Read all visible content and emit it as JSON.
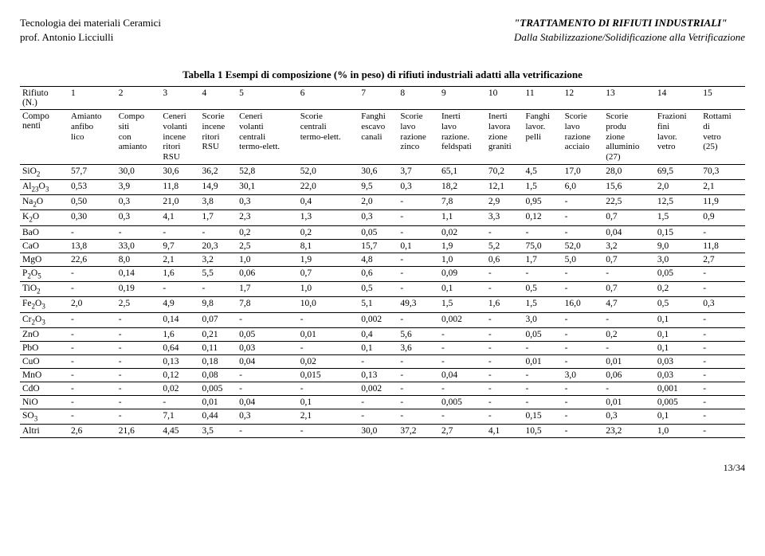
{
  "header": {
    "left_line1": "Tecnologia dei materiali Ceramici",
    "left_line2": "prof. Antonio Licciulli",
    "right_line1": "\"TRATTAMENTO DI RIFIUTI INDUSTRIALI\"",
    "right_line2": "Dalla Stabilizzazione/Solidificazione alla Vetrificazione"
  },
  "caption": "Tabella 1 Esempi di composizione (% in peso) di rifiuti industriali adatti alla vetrificazione",
  "pagenum": "13/34",
  "col_ids": [
    "1",
    "2",
    "3",
    "4",
    "5",
    "6",
    "7",
    "8",
    "9",
    "10",
    "11",
    "12",
    "13",
    "14",
    "15"
  ],
  "col_desc": [
    "Amianto anfibo lico",
    "Compo siti con amianto",
    "Ceneri volanti incene ritori RSU",
    "Scorie incene ritori RSU",
    "Ceneri volanti centrali termo-elett.",
    "Scorie centrali termo-elett.",
    "Fanghi escavo canali",
    "Scorie lavo razione zinco",
    "Inerti lavo razione. feldspati",
    "Inerti lavora zione graniti",
    "Fanghi lavor. pelli",
    "Scorie lavo razione acciaio",
    "Scorie produ zione alluminio (27)",
    "Frazioni fini lavor. vetro",
    "Rottami di vetro (25)"
  ],
  "row_head_label1": "Rifiuto (N.)",
  "row_head_label2": "Compo nenti",
  "rows": [
    {
      "label": "SiO2",
      "sub": "2",
      "base": "SiO",
      "v": [
        "57,7",
        "30,0",
        "30,6",
        "36,2",
        "52,8",
        "52,0",
        "30,6",
        "3,7",
        "65,1",
        "70,2",
        "4,5",
        "17,0",
        "28,0",
        "69,5",
        "70,3"
      ]
    },
    {
      "label": "Al2O3",
      "sub": "23",
      "base": "Al",
      "sub2": "3",
      "mid": "O",
      "v": [
        "0,53",
        "3,9",
        "11,8",
        "14,9",
        "30,1",
        "22,0",
        "9,5",
        "0,3",
        "18,2",
        "12,1",
        "1,5",
        "6,0",
        "15,6",
        "2,0",
        "2,1"
      ]
    },
    {
      "label": "Na2O",
      "sub": "2",
      "base": "Na",
      "tail": "O",
      "v": [
        "0,50",
        "0,3",
        "21,0",
        "3,8",
        "0,3",
        "0,4",
        "2,0",
        "-",
        "7,8",
        "2,9",
        "0,95",
        "-",
        "22,5",
        "12,5",
        "11,9"
      ]
    },
    {
      "label": "K2O",
      "sub": "2",
      "base": "K",
      "tail": "O",
      "v": [
        "0,30",
        "0,3",
        "4,1",
        "1,7",
        "2,3",
        "1,3",
        "0,3",
        "-",
        "1,1",
        "3,3",
        "0,12",
        "-",
        "0,7",
        "1,5",
        "0,9"
      ]
    },
    {
      "label": "BaO",
      "v": [
        "-",
        "-",
        "-",
        "-",
        "0,2",
        "0,2",
        "0,05",
        "-",
        "0,02",
        "-",
        "-",
        "-",
        "0,04",
        "0,15",
        "-"
      ]
    },
    {
      "label": "CaO",
      "v": [
        "13,8",
        "33,0",
        "9,7",
        "20,3",
        "2,5",
        "8,1",
        "15,7",
        "0,1",
        "1,9",
        "5,2",
        "75,0",
        "52,0",
        "3,2",
        "9,0",
        "11,8"
      ]
    },
    {
      "label": "MgO",
      "v": [
        "22,6",
        "8,0",
        "2,1",
        "3,2",
        "1,0",
        "1,9",
        "4,8",
        "-",
        "1,0",
        "0,6",
        "1,7",
        "5,0",
        "0,7",
        "3,0",
        "2,7"
      ]
    },
    {
      "label": "P2O5",
      "sub": "2",
      "base": "P",
      "mid": "O",
      "sub2": "5",
      "v": [
        "-",
        "0,14",
        "1,6",
        "5,5",
        "0,06",
        "0,7",
        "0,6",
        "-",
        "0,09",
        "-",
        "-",
        "-",
        "-",
        "0,05",
        "-"
      ]
    },
    {
      "label": "TiO2",
      "sub": "2",
      "base": "TiO",
      "v": [
        "-",
        "0,19",
        "-",
        "-",
        "1,7",
        "1,0",
        "0,5",
        "-",
        "0,1",
        "-",
        "0,5",
        "-",
        "0,7",
        "0,2",
        "-"
      ]
    },
    {
      "label": "Fe2O3",
      "sub": "2",
      "base": "Fe",
      "mid": "O",
      "sub2": "3",
      "v": [
        "2,0",
        "2,5",
        "4,9",
        "9,8",
        "7,8",
        "10,0",
        "5,1",
        "49,3",
        "1,5",
        "1,6",
        "1,5",
        "16,0",
        "4,7",
        "0,5",
        "0,3"
      ]
    },
    {
      "label": "Cr2O3",
      "sub": "2",
      "base": "Cr",
      "mid": "O",
      "sub2": "3",
      "v": [
        "-",
        "-",
        "0,14",
        "0,07",
        "-",
        "-",
        "0,002",
        "-",
        "0,002",
        "-",
        "3,0",
        "-",
        "-",
        "0,1",
        "-"
      ]
    },
    {
      "label": "ZnO",
      "v": [
        "-",
        "-",
        "1,6",
        "0,21",
        "0,05",
        "0,01",
        "0,4",
        "5,6",
        "-",
        "-",
        "0,05",
        "-",
        "0,2",
        "0,1",
        "-"
      ]
    },
    {
      "label": "PbO",
      "v": [
        "-",
        "-",
        "0,64",
        "0,11",
        "0,03",
        "-",
        "0,1",
        "3,6",
        "-",
        "-",
        "-",
        "-",
        "-",
        "0,1",
        "-"
      ]
    },
    {
      "label": "CuO",
      "v": [
        "-",
        "-",
        "0,13",
        "0,18",
        "0,04",
        "0,02",
        "-",
        "-",
        "-",
        "-",
        "0,01",
        "-",
        "0,01",
        "0,03",
        "-"
      ]
    },
    {
      "label": "MnO",
      "v": [
        "-",
        "-",
        "0,12",
        "0,08",
        "-",
        "0,015",
        "0,13",
        "-",
        "0,04",
        "-",
        "-",
        "3,0",
        "0,06",
        "0,03",
        "-"
      ]
    },
    {
      "label": "CdO",
      "v": [
        "-",
        "-",
        "0,02",
        "0,005",
        "-",
        "-",
        "0,002",
        "-",
        "-",
        "-",
        "-",
        "-",
        "-",
        "0,001",
        "-"
      ]
    },
    {
      "label": "NiO",
      "v": [
        "-",
        "-",
        "-",
        "0,01",
        "0,04",
        "0,1",
        "-",
        "-",
        "0,005",
        "-",
        "-",
        "-",
        "0,01",
        "0,005",
        "-"
      ]
    },
    {
      "label": "SO3",
      "sub": "3",
      "base": "SO",
      "v": [
        "-",
        "-",
        "7,1",
        "0,44",
        "0,3",
        "2,1",
        "-",
        "-",
        "-",
        "-",
        "0,15",
        "-",
        "0,3",
        "0,1",
        "-"
      ]
    },
    {
      "label": "Altri",
      "v": [
        "2,6",
        "21,6",
        "4,45",
        "3,5",
        "-",
        "-",
        "30,0",
        "37,2",
        "2,7",
        "4,1",
        "10,5",
        "-",
        "23,2",
        "1,0",
        "-"
      ]
    }
  ]
}
